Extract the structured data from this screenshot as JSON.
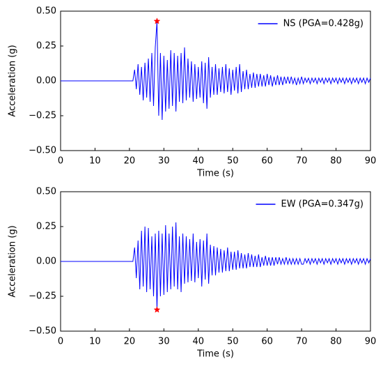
{
  "chart_data": [
    {
      "type": "line",
      "xlabel": "Time (s)",
      "ylabel": "Acceleration (g)",
      "legend": "upper right",
      "x": [
        0,
        21,
        21.5,
        22,
        22.5,
        23,
        23.5,
        24,
        24.5,
        25,
        25.5,
        26,
        26.5,
        27,
        27.5,
        28,
        28.5,
        29,
        29.5,
        30,
        30.5,
        31,
        31.5,
        32,
        32.5,
        33,
        33.5,
        34,
        34.5,
        35,
        35.5,
        36,
        36.5,
        37,
        37.5,
        38,
        38.5,
        39,
        39.5,
        40,
        40.5,
        41,
        41.5,
        42,
        42.5,
        43,
        43.5,
        44,
        44.5,
        45,
        45.5,
        46,
        46.5,
        47,
        47.5,
        48,
        48.5,
        49,
        49.5,
        50,
        50.5,
        51,
        51.5,
        52,
        52.5,
        53,
        53.5,
        54,
        54.5,
        55,
        55.5,
        56,
        56.5,
        57,
        57.5,
        58,
        58.5,
        59,
        59.5,
        60,
        60.5,
        61,
        61.5,
        62,
        62.5,
        63,
        63.5,
        64,
        64.5,
        65,
        65.5,
        66,
        66.5,
        67,
        67.5,
        68,
        68.5,
        69,
        69.5,
        70,
        70.5,
        71,
        71.5,
        72,
        72.5,
        73,
        73.5,
        74,
        74.5,
        75,
        75.5,
        76,
        76.5,
        77,
        77.5,
        78,
        78.5,
        79,
        79.5,
        80,
        80.5,
        81,
        81.5,
        82,
        82.5,
        83,
        83.5,
        84,
        84.5,
        85,
        85.5,
        86,
        86.5,
        87,
        87.5,
        88,
        88.5,
        89,
        89.5,
        90
      ],
      "series": [
        {
          "name": "NS (PGA=0.428g)",
          "color": "#0000ff",
          "values": [
            0,
            0,
            0.08,
            -0.06,
            0.12,
            -0.1,
            0.1,
            -0.14,
            0.13,
            -0.12,
            0.16,
            -0.15,
            0.2,
            -0.18,
            0.24,
            0.428,
            -0.25,
            0.2,
            -0.28,
            0.18,
            -0.22,
            0.15,
            -0.2,
            0.22,
            -0.18,
            0.2,
            -0.22,
            0.18,
            -0.15,
            0.2,
            -0.16,
            0.24,
            -0.14,
            0.16,
            -0.12,
            0.14,
            -0.15,
            0.12,
            -0.13,
            0.1,
            -0.12,
            0.14,
            -0.16,
            0.13,
            -0.2,
            0.17,
            -0.12,
            0.1,
            -0.1,
            0.12,
            -0.1,
            0.09,
            -0.08,
            0.1,
            -0.09,
            0.12,
            -0.08,
            0.09,
            -0.1,
            0.08,
            -0.07,
            0.1,
            -0.09,
            0.12,
            -0.08,
            0.07,
            -0.06,
            0.08,
            -0.06,
            0.05,
            -0.05,
            0.06,
            -0.05,
            0.05,
            -0.04,
            0.05,
            -0.04,
            0.04,
            -0.04,
            0.05,
            -0.03,
            0.04,
            -0.04,
            0.03,
            -0.03,
            0.04,
            -0.03,
            0.03,
            -0.03,
            0.03,
            -0.02,
            0.03,
            -0.02,
            0.03,
            -0.02,
            0.02,
            -0.03,
            0.02,
            -0.02,
            0.03,
            -0.02,
            0.02,
            -0.01,
            0.02,
            -0.02,
            0.02,
            -0.01,
            0.02,
            -0.02,
            0.02,
            -0.01,
            0.02,
            -0.02,
            0.02,
            -0.01,
            0.02,
            -0.02,
            0.02,
            -0.01,
            0.02,
            -0.02,
            0.02,
            -0.01,
            0.02,
            -0.02,
            0.02,
            -0.01,
            0.02,
            -0.02,
            0.02,
            -0.01,
            0.02,
            -0.02,
            0.02,
            -0.01,
            0.02,
            -0.02,
            0.02,
            -0.01,
            0.02
          ]
        }
      ],
      "peak": {
        "x": 28,
        "y": 0.428,
        "marker": "star",
        "color": "#ff0000"
      },
      "xlim": [
        0,
        90
      ],
      "xticks": [
        0,
        10,
        20,
        30,
        40,
        50,
        60,
        70,
        80,
        90
      ],
      "ylim": [
        -0.5,
        0.5
      ],
      "yticks": [
        {
          "value": -0.5,
          "label": "−0.50"
        },
        {
          "value": -0.25,
          "label": "−0.25"
        },
        {
          "value": 0,
          "label": "0.00"
        },
        {
          "value": 0.25,
          "label": "0.25"
        },
        {
          "value": 0.5,
          "label": "0.50"
        }
      ]
    },
    {
      "type": "line",
      "xlabel": "Time (s)",
      "ylabel": "Acceleration (g)",
      "legend": "upper right",
      "x": [
        0,
        21,
        21.5,
        22,
        22.5,
        23,
        23.5,
        24,
        24.5,
        25,
        25.5,
        26,
        26.5,
        27,
        27.5,
        28,
        28.5,
        29,
        29.5,
        30,
        30.5,
        31,
        31.5,
        32,
        32.5,
        33,
        33.5,
        34,
        34.5,
        35,
        35.5,
        36,
        36.5,
        37,
        37.5,
        38,
        38.5,
        39,
        39.5,
        40,
        40.5,
        41,
        41.5,
        42,
        42.5,
        43,
        43.5,
        44,
        44.5,
        45,
        45.5,
        46,
        46.5,
        47,
        47.5,
        48,
        48.5,
        49,
        49.5,
        50,
        50.5,
        51,
        51.5,
        52,
        52.5,
        53,
        53.5,
        54,
        54.5,
        55,
        55.5,
        56,
        56.5,
        57,
        57.5,
        58,
        58.5,
        59,
        59.5,
        60,
        60.5,
        61,
        61.5,
        62,
        62.5,
        63,
        63.5,
        64,
        64.5,
        65,
        65.5,
        66,
        66.5,
        67,
        67.5,
        68,
        68.5,
        69,
        69.5,
        70,
        70.5,
        71,
        71.5,
        72,
        72.5,
        73,
        73.5,
        74,
        74.5,
        75,
        75.5,
        76,
        76.5,
        77,
        77.5,
        78,
        78.5,
        79,
        79.5,
        80,
        80.5,
        81,
        81.5,
        82,
        82.5,
        83,
        83.5,
        84,
        84.5,
        85,
        85.5,
        86,
        86.5,
        87,
        87.5,
        88,
        88.5,
        89,
        89.5,
        90
      ],
      "series": [
        {
          "name": "EW (PGA=0.347g)",
          "color": "#0000ff",
          "values": [
            0,
            0,
            0.1,
            -0.12,
            0.15,
            -0.2,
            0.22,
            -0.18,
            0.25,
            -0.22,
            0.24,
            -0.2,
            0.18,
            -0.25,
            0.2,
            -0.347,
            0.22,
            -0.25,
            0.2,
            -0.24,
            0.26,
            -0.22,
            0.2,
            -0.2,
            0.25,
            -0.18,
            0.28,
            -0.2,
            0.18,
            -0.22,
            0.2,
            -0.16,
            0.18,
            -0.15,
            0.16,
            -0.14,
            0.2,
            -0.15,
            0.14,
            -0.12,
            0.16,
            -0.18,
            0.15,
            -0.13,
            0.2,
            -0.16,
            0.12,
            -0.1,
            0.11,
            -0.1,
            0.1,
            -0.08,
            0.09,
            -0.08,
            0.08,
            -0.07,
            0.1,
            -0.07,
            0.07,
            -0.06,
            0.07,
            -0.06,
            0.08,
            -0.05,
            0.06,
            -0.05,
            0.05,
            -0.05,
            0.06,
            -0.04,
            0.05,
            -0.04,
            0.04,
            -0.04,
            0.05,
            -0.04,
            0.03,
            -0.03,
            0.04,
            -0.03,
            0.03,
            -0.03,
            0.03,
            -0.03,
            0.03,
            -0.02,
            0.03,
            -0.02,
            0.02,
            -0.02,
            0.03,
            -0.02,
            0.02,
            -0.02,
            0.02,
            -0.02,
            0.02,
            -0.02,
            0.02,
            -0.02,
            -0.02,
            0.02,
            -0.01,
            0.02,
            -0.02,
            0.02,
            -0.01,
            0.02,
            -0.02,
            0.02,
            -0.01,
            0.02,
            -0.02,
            0.02,
            -0.01,
            0.02,
            -0.02,
            0.02,
            -0.01,
            0.02,
            -0.02,
            0.02,
            -0.01,
            0.02,
            -0.02,
            0.02,
            -0.01,
            0.02,
            -0.02,
            0.02,
            -0.01,
            0.02,
            -0.02,
            0.02,
            -0.01,
            0.02,
            -0.02,
            0.02,
            -0.01,
            0.02
          ]
        }
      ],
      "peak": {
        "x": 28,
        "y": -0.347,
        "marker": "star",
        "color": "#ff0000"
      },
      "xlim": [
        0,
        90
      ],
      "xticks": [
        0,
        10,
        20,
        30,
        40,
        50,
        60,
        70,
        80,
        90
      ],
      "ylim": [
        -0.5,
        0.5
      ],
      "yticks": [
        {
          "value": -0.5,
          "label": "−0.50"
        },
        {
          "value": -0.25,
          "label": "−0.25"
        },
        {
          "value": 0,
          "label": "0.00"
        },
        {
          "value": 0.25,
          "label": "0.25"
        },
        {
          "value": 0.5,
          "label": "0.50"
        }
      ]
    }
  ]
}
